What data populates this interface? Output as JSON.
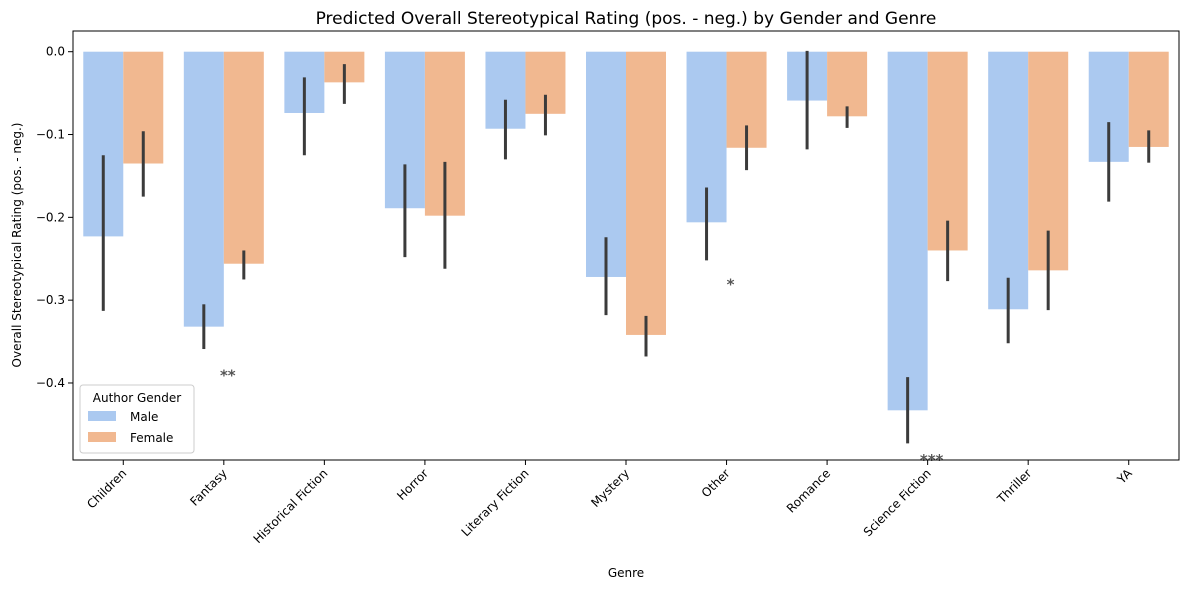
{
  "chart_data": {
    "type": "bar",
    "title": "Predicted Overall Stereotypical Rating (pos. - neg.) by Gender and Genre",
    "xlabel": "Genre",
    "ylabel": "Overall Stereotypical Rating (pos. - neg.)",
    "categories": [
      "Children",
      "Fantasy",
      "Historical Fiction",
      "Horror",
      "Literary Fiction",
      "Mystery",
      "Other",
      "Romance",
      "Science Fiction",
      "Thriller",
      "YA"
    ],
    "series": [
      {
        "name": "Male",
        "color": "#abc9f0",
        "values": [
          -0.223,
          -0.332,
          -0.074,
          -0.189,
          -0.093,
          -0.272,
          -0.206,
          -0.059,
          -0.433,
          -0.311,
          -0.133
        ],
        "ci": [
          [
            -0.313,
            -0.125
          ],
          [
            -0.359,
            -0.305
          ],
          [
            -0.125,
            -0.031
          ],
          [
            -0.248,
            -0.136
          ],
          [
            -0.13,
            -0.058
          ],
          [
            -0.318,
            -0.224
          ],
          [
            -0.252,
            -0.164
          ],
          [
            -0.118,
            0.001
          ],
          [
            -0.473,
            -0.393
          ],
          [
            -0.352,
            -0.273
          ],
          [
            -0.181,
            -0.085
          ]
        ]
      },
      {
        "name": "Female",
        "color": "#f1b890",
        "values": [
          -0.135,
          -0.256,
          -0.037,
          -0.198,
          -0.075,
          -0.342,
          -0.116,
          -0.078,
          -0.24,
          -0.264,
          -0.115
        ],
        "ci": [
          [
            -0.175,
            -0.096
          ],
          [
            -0.275,
            -0.24
          ],
          [
            -0.063,
            -0.015
          ],
          [
            -0.262,
            -0.133
          ],
          [
            -0.101,
            -0.052
          ],
          [
            -0.368,
            -0.319
          ],
          [
            -0.143,
            -0.089
          ],
          [
            -0.092,
            -0.066
          ],
          [
            -0.277,
            -0.204
          ],
          [
            -0.312,
            -0.216
          ],
          [
            -0.134,
            -0.095
          ]
        ]
      }
    ],
    "ylim": [
      -0.493,
      0.025
    ],
    "yticks": [
      0.0,
      -0.1,
      -0.2,
      -0.3,
      -0.4
    ],
    "ytick_labels": [
      "0.0",
      "−0.1",
      "−0.2",
      "−0.3",
      "−0.4"
    ],
    "annotations": [
      {
        "category": "Fantasy",
        "text": "**",
        "y": -0.392
      },
      {
        "category": "Other",
        "text": "*",
        "y": -0.282
      },
      {
        "category": "Science Fiction",
        "text": "***",
        "y": -0.494
      }
    ],
    "legend": {
      "title": "Author Gender",
      "entries": [
        "Male",
        "Female"
      ],
      "placement": "lower-left"
    },
    "grid": false
  }
}
